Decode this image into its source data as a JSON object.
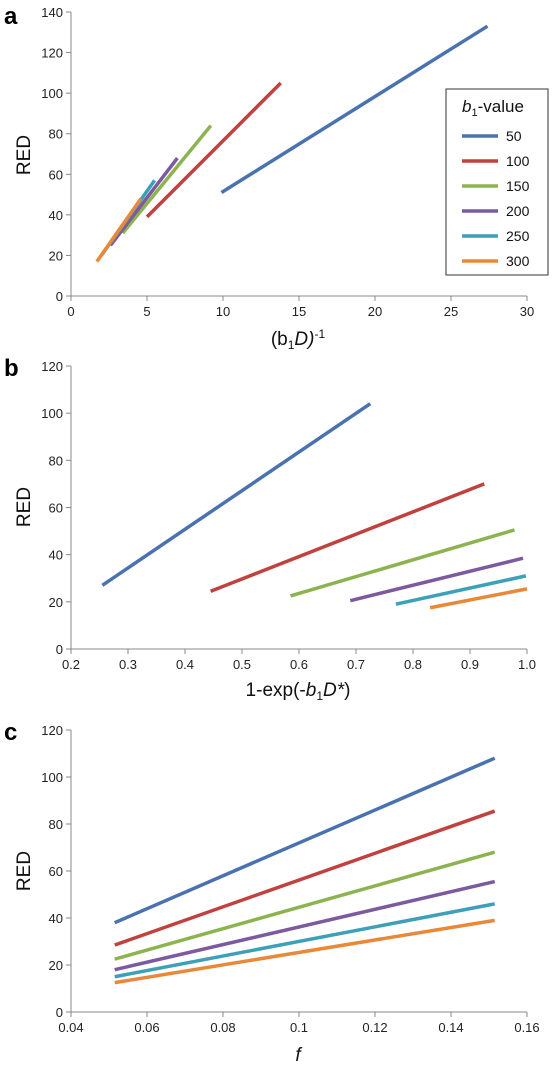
{
  "chart_data": [
    {
      "panel": "a",
      "type": "line",
      "xlabel": "(b1D)-1",
      "ylabel": "RED",
      "xlim": [
        0,
        30
      ],
      "ylim": [
        0,
        140
      ],
      "xticks": [
        "0",
        "5",
        "10",
        "15",
        "20",
        "25",
        "30"
      ],
      "yticks": [
        "0",
        "20",
        "40",
        "60",
        "80",
        "100",
        "120",
        "140"
      ],
      "legend": {
        "title": "b1-value",
        "placement": "right"
      },
      "series": [
        {
          "name": "50",
          "color": "#4a72b0",
          "points": [
            [
              9.9,
              51
            ],
            [
              27.4,
              133
            ]
          ]
        },
        {
          "name": "100",
          "color": "#c0413d",
          "points": [
            [
              5.0,
              39
            ],
            [
              13.8,
              105
            ]
          ]
        },
        {
          "name": "150",
          "color": "#8db351",
          "points": [
            [
              3.4,
              31
            ],
            [
              9.2,
              84
            ]
          ]
        },
        {
          "name": "200",
          "color": "#7b5aa0",
          "points": [
            [
              2.6,
              25
            ],
            [
              7.0,
              68
            ]
          ]
        },
        {
          "name": "250",
          "color": "#3ca0b8",
          "points": [
            [
              2.0,
              20
            ],
            [
              5.5,
              57
            ]
          ]
        },
        {
          "name": "300",
          "color": "#e8893a",
          "points": [
            [
              1.7,
              17
            ],
            [
              4.6,
              48
            ]
          ]
        }
      ]
    },
    {
      "panel": "b",
      "type": "line",
      "xlabel": "1-exp(-b1D*)",
      "ylabel": "RED",
      "xlim": [
        0.2,
        1.0
      ],
      "ylim": [
        0,
        120
      ],
      "xticks": [
        "0.2",
        "0.3",
        "0.4",
        "0.5",
        "0.6",
        "0.7",
        "0.8",
        "0.9",
        "1.0"
      ],
      "yticks": [
        "0",
        "20",
        "40",
        "60",
        "80",
        "100",
        "120"
      ],
      "series": [
        {
          "color": "#4a72b0",
          "points": [
            [
              0.255,
              27
            ],
            [
              0.725,
              104
            ]
          ]
        },
        {
          "color": "#c0413d",
          "points": [
            [
              0.445,
              24.5
            ],
            [
              0.925,
              70
            ]
          ]
        },
        {
          "color": "#8db351",
          "points": [
            [
              0.585,
              22.5
            ],
            [
              0.978,
              50.5
            ]
          ]
        },
        {
          "color": "#7b5aa0",
          "points": [
            [
              0.69,
              20.5
            ],
            [
              0.993,
              38.5
            ]
          ]
        },
        {
          "color": "#3ca0b8",
          "points": [
            [
              0.77,
              19
            ],
            [
              0.998,
              31
            ]
          ]
        },
        {
          "color": "#e8893a",
          "points": [
            [
              0.83,
              17.5
            ],
            [
              1.0,
              25.5
            ]
          ]
        }
      ]
    },
    {
      "panel": "c",
      "type": "line",
      "xlabel": "f",
      "ylabel": "RED",
      "xlim": [
        0.04,
        0.16
      ],
      "ylim": [
        0,
        120
      ],
      "xticks": [
        "0.04",
        "0.06",
        "0.08",
        "0.1",
        "0.12",
        "0.14",
        "0.16"
      ],
      "yticks": [
        "0",
        "20",
        "40",
        "60",
        "80",
        "100",
        "120"
      ],
      "series": [
        {
          "color": "#4a72b0",
          "points": [
            [
              0.0515,
              38
            ],
            [
              0.1515,
              108
            ]
          ]
        },
        {
          "color": "#c0413d",
          "points": [
            [
              0.0515,
              28.5
            ],
            [
              0.1515,
              85.5
            ]
          ]
        },
        {
          "color": "#8db351",
          "points": [
            [
              0.0515,
              22.5
            ],
            [
              0.1515,
              68
            ]
          ]
        },
        {
          "color": "#7b5aa0",
          "points": [
            [
              0.0515,
              18
            ],
            [
              0.1515,
              55.5
            ]
          ]
        },
        {
          "color": "#3ca0b8",
          "points": [
            [
              0.0515,
              15
            ],
            [
              0.1515,
              46
            ]
          ]
        },
        {
          "color": "#e8893a",
          "points": [
            [
              0.0515,
              12.5
            ],
            [
              0.1515,
              39
            ]
          ]
        }
      ]
    }
  ],
  "panels": {
    "a": {
      "letter": "a",
      "ylabel": "RED",
      "xlabel_base": "(b",
      "xlabel_sub": "1",
      "xlabel_mid": "D)",
      "xlabel_sup": "-1",
      "legend_title_b": "b",
      "legend_title_sub": "1",
      "legend_title_rest": "-value"
    },
    "b": {
      "letter": "b",
      "ylabel": "RED",
      "xlabel_a": "1-exp(-",
      "xlabel_b": "b",
      "xlabel_sub": "1",
      "xlabel_c": "D*",
      "xlabel_d": ")"
    },
    "c": {
      "letter": "c",
      "ylabel": "RED",
      "xlabel": "f"
    }
  }
}
